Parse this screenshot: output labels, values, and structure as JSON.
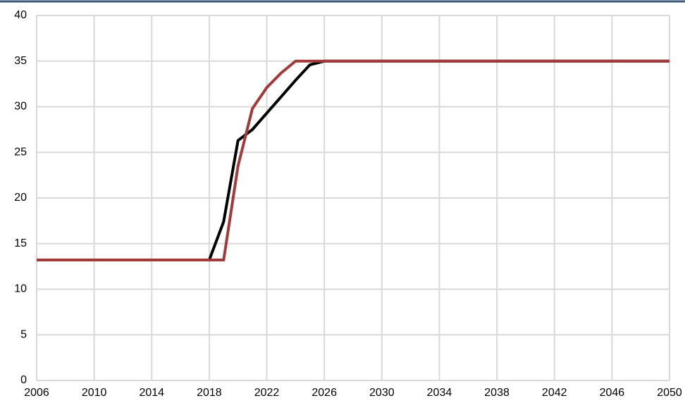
{
  "chart_data": {
    "type": "line",
    "x": [
      2006,
      2007,
      2008,
      2009,
      2010,
      2011,
      2012,
      2013,
      2014,
      2015,
      2016,
      2017,
      2018,
      2019,
      2020,
      2021,
      2022,
      2023,
      2024,
      2025,
      2026,
      2027,
      2028,
      2029,
      2030,
      2031,
      2032,
      2033,
      2034,
      2035,
      2036,
      2037,
      2038,
      2039,
      2040,
      2041,
      2042,
      2043,
      2044,
      2045,
      2046,
      2047,
      2048,
      2049,
      2050
    ],
    "series": [
      {
        "color": "#000000",
        "values": [
          13.2,
          13.2,
          13.2,
          13.2,
          13.2,
          13.2,
          13.2,
          13.2,
          13.2,
          13.2,
          13.2,
          13.2,
          13.2,
          17.4,
          26.3,
          27.5,
          29.3,
          31.1,
          32.9,
          34.6,
          35,
          35,
          35,
          35,
          35,
          35,
          35,
          35,
          35,
          35,
          35,
          35,
          35,
          35,
          35,
          35,
          35,
          35,
          35,
          35,
          35,
          35,
          35,
          35,
          35
        ]
      },
      {
        "color": "#a33a3a",
        "values": [
          13.2,
          13.2,
          13.2,
          13.2,
          13.2,
          13.2,
          13.2,
          13.2,
          13.2,
          13.2,
          13.2,
          13.2,
          13.2,
          13.2,
          23.5,
          29.8,
          32.1,
          33.7,
          35,
          35,
          35,
          35,
          35,
          35,
          35,
          35,
          35,
          35,
          35,
          35,
          35,
          35,
          35,
          35,
          35,
          35,
          35,
          35,
          35,
          35,
          35,
          35,
          35,
          35,
          35
        ]
      }
    ],
    "xlim": [
      2006,
      2050
    ],
    "xticks": [
      2006,
      2010,
      2014,
      2018,
      2022,
      2026,
      2030,
      2034,
      2038,
      2042,
      2046,
      2050
    ],
    "ylim": [
      0,
      40
    ],
    "yticks": [
      0,
      5,
      10,
      15,
      20,
      25,
      30,
      35,
      40
    ],
    "grid": true
  }
}
